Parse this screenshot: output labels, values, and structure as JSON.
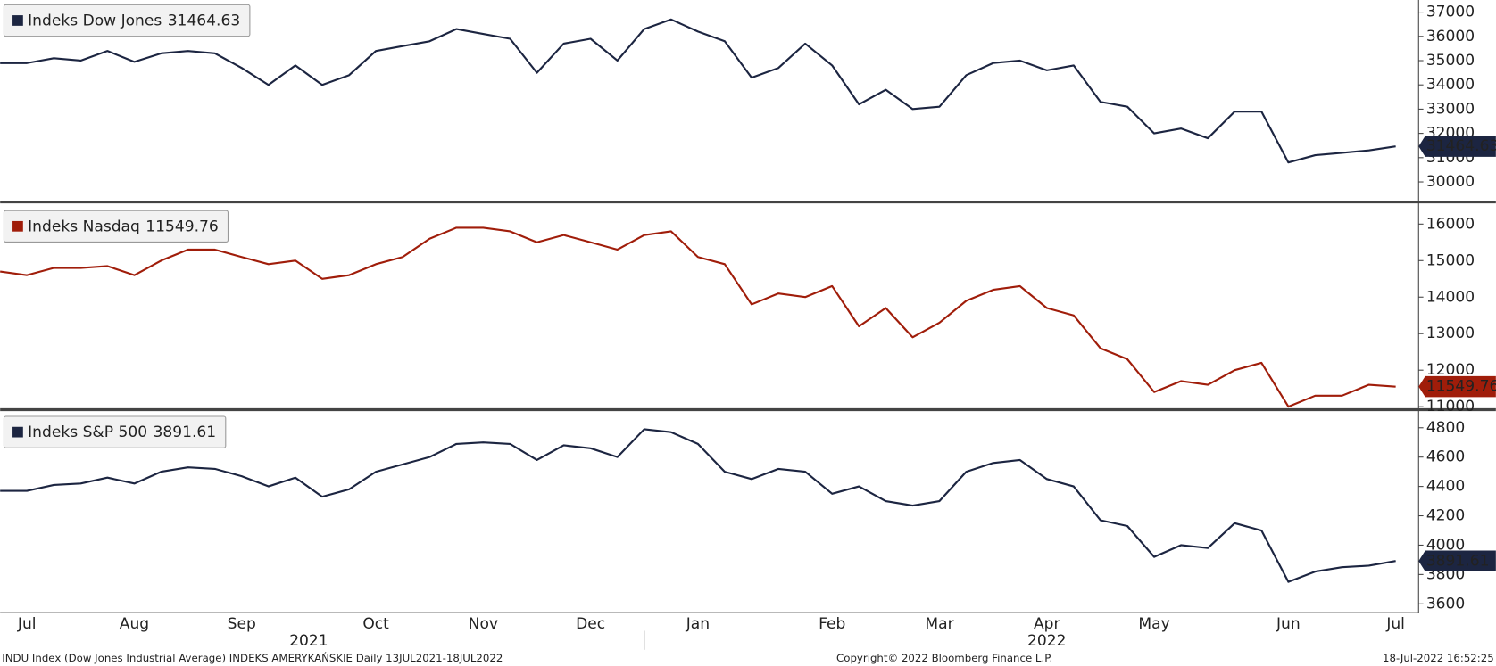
{
  "chart_data": [
    {
      "type": "line",
      "series": [
        {
          "name": "Indeks Dow Jones",
          "color": "#1c2541",
          "values": [
            34900,
            34900,
            35100,
            35000,
            35400,
            34950,
            35300,
            35400,
            35300,
            34700,
            34000,
            34800,
            34000,
            34400,
            35400,
            35600,
            35800,
            36300,
            36100,
            35900,
            34500,
            35700,
            35900,
            35000,
            36300,
            36700,
            36200,
            35800,
            34300,
            34700,
            35700,
            34800,
            33200,
            33800,
            33000,
            33100,
            34400,
            34900,
            35000,
            34600,
            34800,
            33300,
            33100,
            32000,
            32200,
            31800,
            32900,
            32900,
            30800,
            31100,
            31200,
            31300,
            31464.63
          ]
        }
      ],
      "ylim": [
        29250,
        37500
      ],
      "yticks": [
        30000,
        31000,
        32000,
        33000,
        34000,
        35000,
        36000,
        37000
      ]
    },
    {
      "type": "line",
      "series": [
        {
          "name": "Indeks Nasdaq",
          "color": "#a01d0a",
          "values": [
            14700,
            14600,
            14800,
            14800,
            14850,
            14600,
            15000,
            15300,
            15300,
            15100,
            14900,
            15000,
            14500,
            14600,
            14900,
            15100,
            15600,
            15900,
            15900,
            15800,
            15500,
            15700,
            15500,
            15300,
            15700,
            15800,
            15100,
            14900,
            13800,
            14100,
            14000,
            14300,
            13200,
            13700,
            12900,
            13300,
            13900,
            14200,
            14300,
            13700,
            13500,
            12600,
            12300,
            11400,
            11700,
            11600,
            12000,
            12200,
            11000,
            11300,
            11300,
            11600,
            11549.76
          ]
        }
      ],
      "ylim": [
        10970,
        16500
      ],
      "yticks": [
        11000,
        12000,
        13000,
        14000,
        15000,
        16000
      ]
    },
    {
      "type": "line",
      "series": [
        {
          "name": "Indeks S&P 500",
          "color": "#1c2541",
          "values": [
            4370,
            4370,
            4410,
            4420,
            4460,
            4420,
            4500,
            4530,
            4520,
            4470,
            4400,
            4460,
            4330,
            4380,
            4500,
            4550,
            4600,
            4690,
            4700,
            4690,
            4580,
            4680,
            4660,
            4600,
            4790,
            4770,
            4690,
            4500,
            4450,
            4520,
            4500,
            4350,
            4400,
            4300,
            4270,
            4300,
            4500,
            4560,
            4580,
            4450,
            4400,
            4170,
            4130,
            3920,
            4000,
            3980,
            4150,
            4100,
            3750,
            3820,
            3850,
            3860,
            3891.61
          ]
        }
      ],
      "ylim": [
        3540,
        4910
      ],
      "yticks": [
        3600,
        3800,
        4000,
        4200,
        4400,
        4600,
        4800
      ],
      "categories": [
        null,
        "Jul",
        null,
        null,
        null,
        "Aug",
        null,
        null,
        null,
        "Sep",
        null,
        null,
        null,
        null,
        "Oct",
        null,
        null,
        null,
        "Nov",
        null,
        null,
        null,
        "Dec",
        null,
        null,
        null,
        "Jan",
        null,
        null,
        null,
        null,
        "Feb",
        null,
        null,
        null,
        "Mar",
        null,
        null,
        null,
        "Apr",
        null,
        null,
        null,
        "May",
        null,
        null,
        null,
        null,
        "Jun",
        null,
        null,
        null,
        "Jul"
      ],
      "x_group_labels": [
        "2021",
        "2022"
      ]
    }
  ],
  "footer": {
    "left": "INDU Index (Dow Jones Industrial Average) INDEKS AMERYKAŃSKIE  Daily 13JUL2021-18JUL2022",
    "center": "Copyright© 2022 Bloomberg Finance L.P.",
    "right": "18-Jul-2022 16:52:25"
  }
}
